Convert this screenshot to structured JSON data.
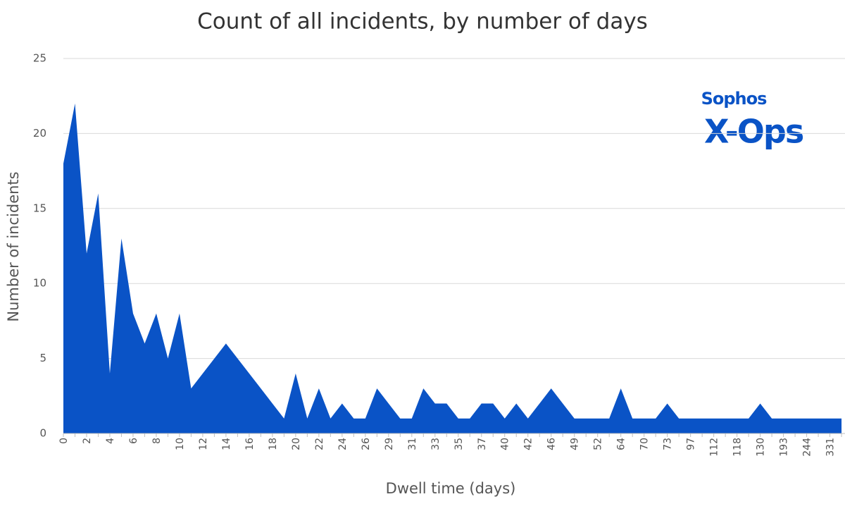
{
  "chart_data": {
    "type": "area",
    "title": "Count of all incidents, by number of days",
    "x_label": "Dwell time (days)",
    "y_label": "Number  of incidents",
    "logo_text": [
      "Sophos",
      "X-Ops"
    ],
    "color": "#0a53c6",
    "grid": true,
    "ylim": [
      0,
      25
    ],
    "yticks": [
      0,
      5,
      10,
      15,
      20,
      25
    ],
    "categories": [
      "0",
      null,
      "2",
      null,
      "4",
      null,
      "6",
      null,
      "8",
      null,
      "10",
      null,
      "12",
      null,
      "14",
      null,
      "16",
      null,
      "18",
      null,
      "20",
      null,
      "22",
      null,
      "24",
      null,
      "26",
      null,
      "29",
      null,
      "31",
      null,
      "33",
      null,
      "35",
      null,
      "37",
      null,
      "40",
      null,
      "42",
      null,
      "46",
      null,
      "49",
      null,
      "52",
      null,
      "64",
      null,
      "70",
      null,
      "73",
      null,
      "97",
      null,
      "112",
      null,
      "118",
      null,
      "130",
      null,
      "193",
      null,
      "244",
      null,
      "331",
      null
    ],
    "values": [
      18,
      22,
      12,
      16,
      4,
      13,
      8,
      6,
      8,
      5,
      8,
      3,
      4,
      5,
      6,
      5,
      4,
      3,
      2,
      1,
      4,
      1,
      3,
      1,
      2,
      1,
      1,
      3,
      2,
      1,
      1,
      3,
      2,
      2,
      1,
      1,
      2,
      2,
      1,
      2,
      1,
      2,
      3,
      2,
      1,
      1,
      1,
      1,
      3,
      1,
      1,
      1,
      2,
      1,
      1,
      1,
      1,
      1,
      1,
      1,
      2,
      1,
      1,
      1,
      1,
      1,
      1,
      1
    ]
  }
}
